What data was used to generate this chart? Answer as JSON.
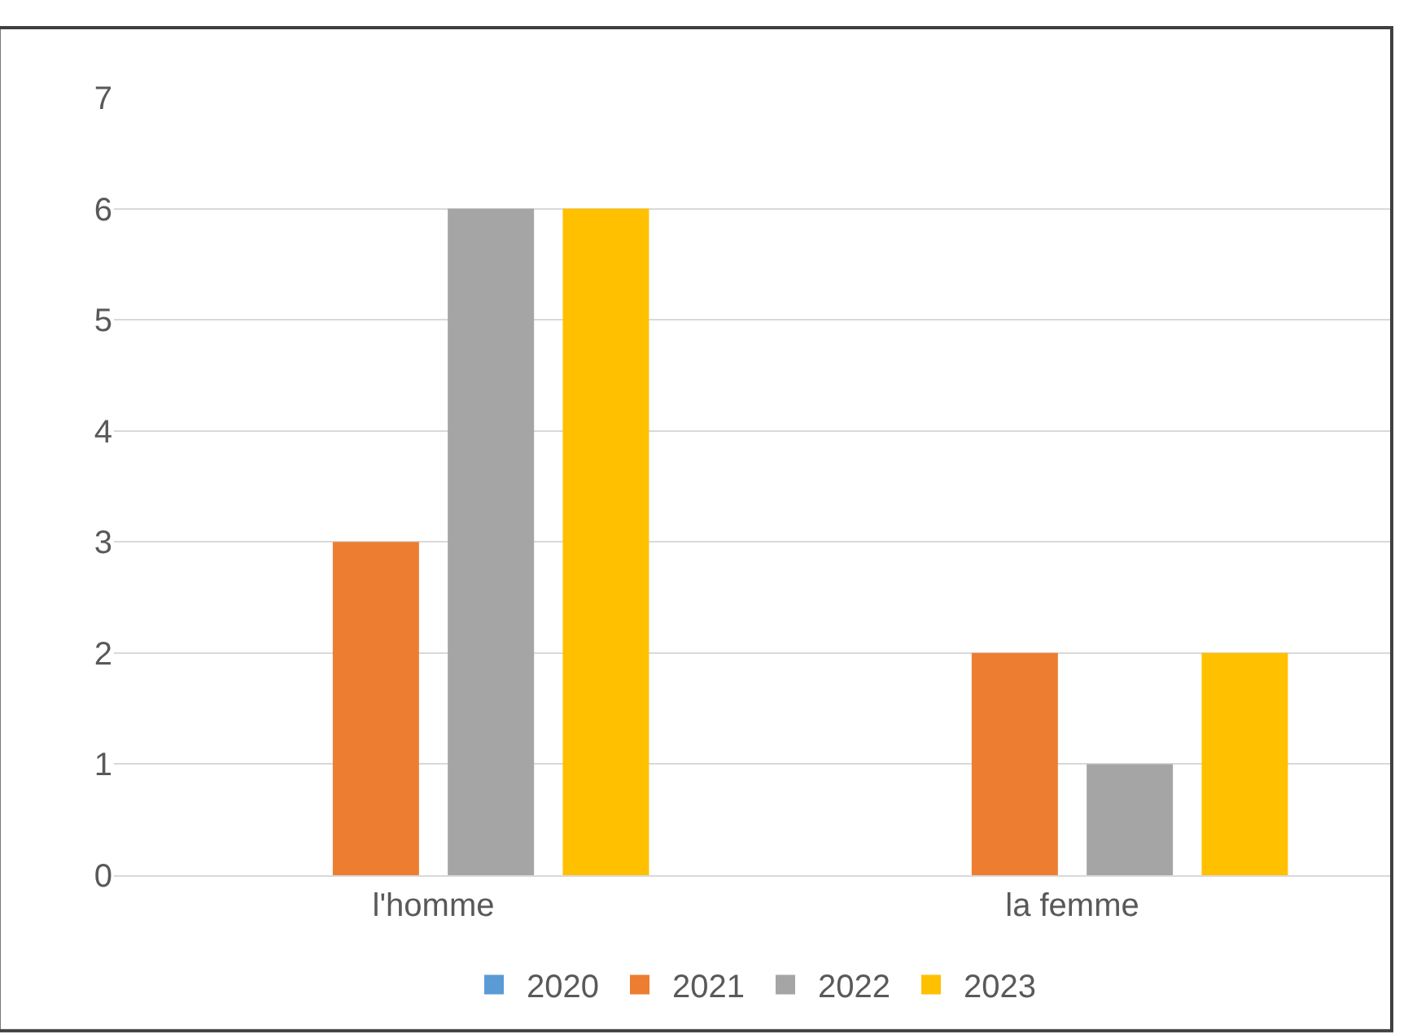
{
  "chart_data": {
    "type": "bar",
    "categories": [
      "l'homme",
      "la femme"
    ],
    "series": [
      {
        "name": "2020",
        "color": "#5b9bd5",
        "values": [
          0,
          0
        ]
      },
      {
        "name": "2021",
        "color": "#ed7d31",
        "values": [
          3,
          2
        ]
      },
      {
        "name": "2022",
        "color": "#a5a5a5",
        "values": [
          6,
          1
        ]
      },
      {
        "name": "2023",
        "color": "#ffc000",
        "values": [
          6,
          2
        ]
      }
    ],
    "ylim": [
      0,
      7
    ],
    "yticks": [
      0,
      1,
      2,
      3,
      4,
      5,
      6,
      7
    ],
    "grid": "y",
    "legend": "bottom"
  }
}
